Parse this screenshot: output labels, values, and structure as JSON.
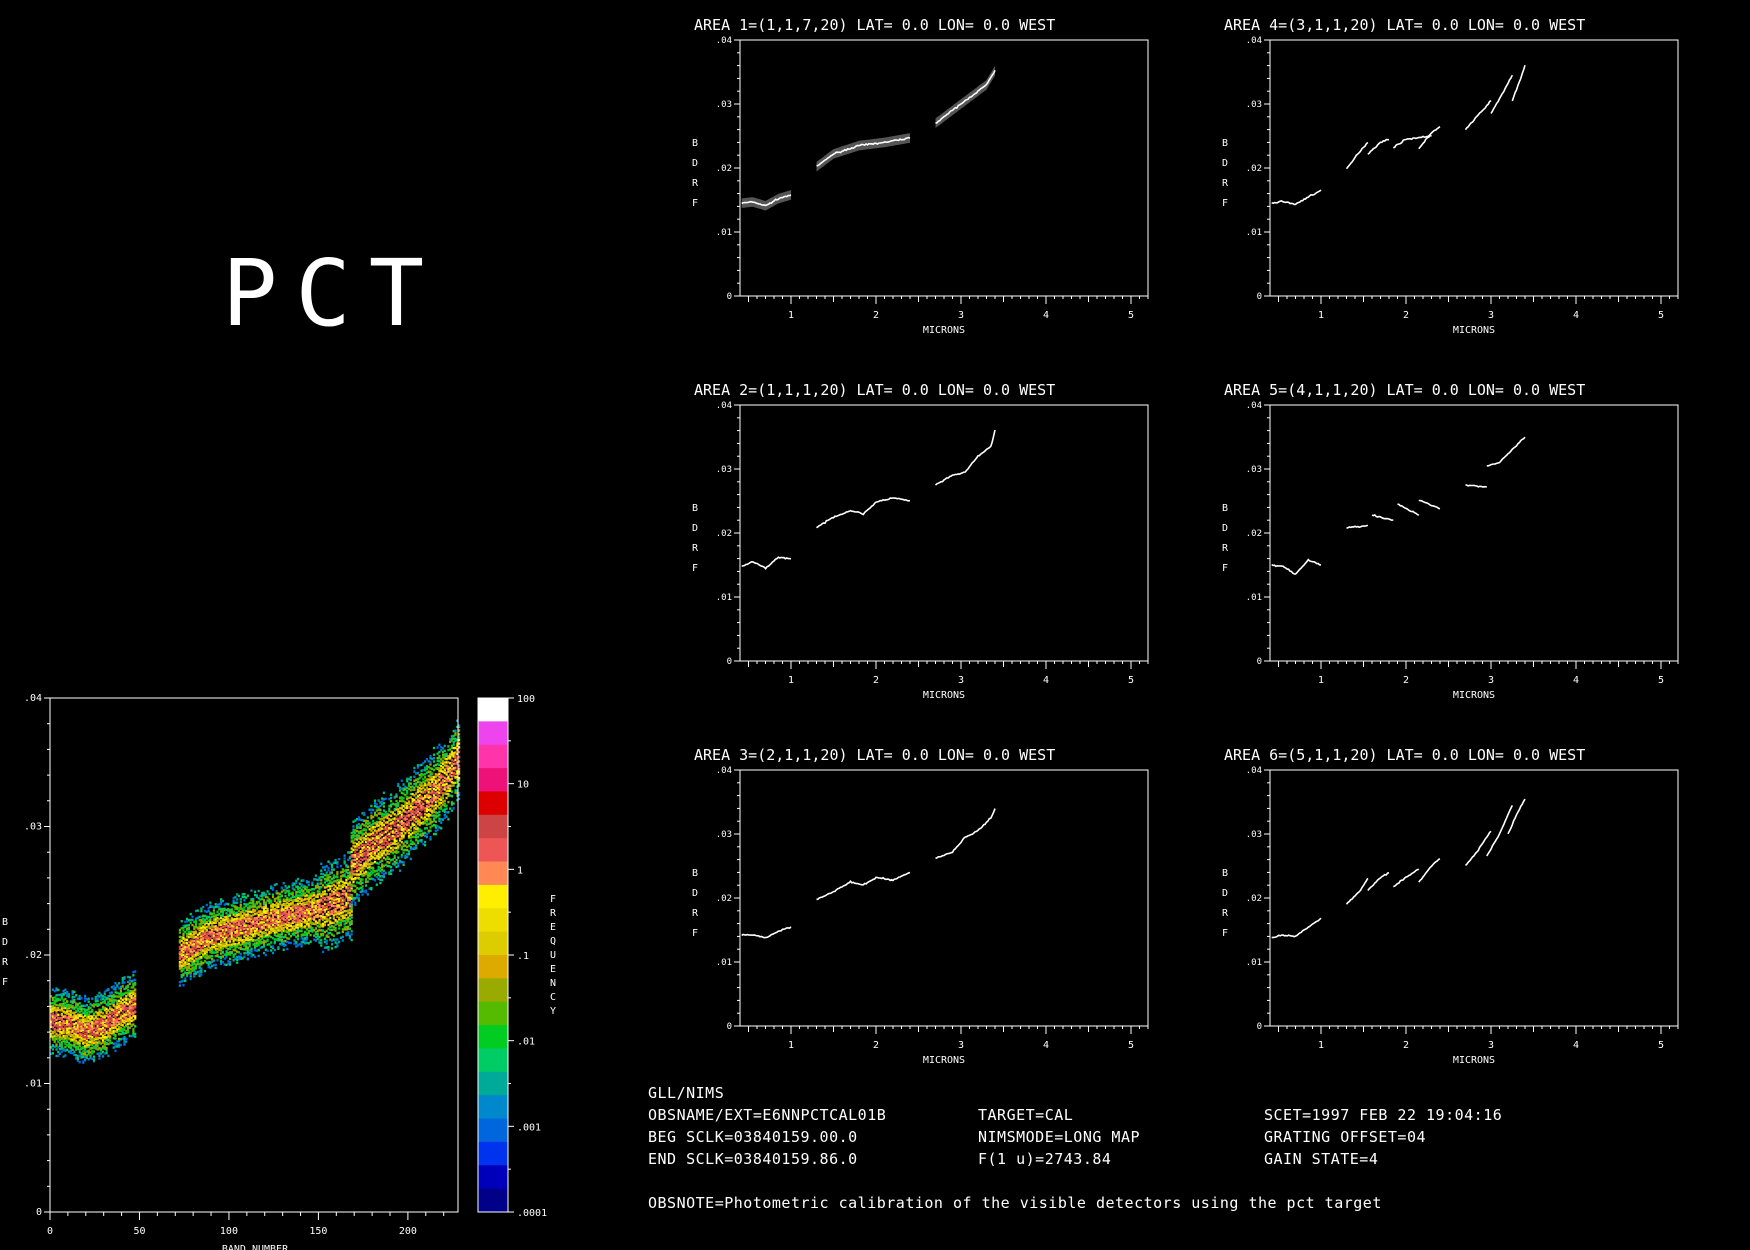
{
  "title": "PCT",
  "tick_labels_y": [
    ".01",
    ".02",
    ".03",
    ".04"
  ],
  "y_zero_label": "0",
  "heatmap": {
    "ylabel": "BDRF",
    "xlabel": "BAND NUMBER",
    "xticks": [
      "0",
      "50",
      "100",
      "150",
      "200"
    ],
    "colorbar_label": "FREQUENCY",
    "colorbar_ticks": [
      "100",
      "10",
      "1",
      ".1",
      ".01",
      ".001",
      ".0001"
    ],
    "colors": [
      "#ffffff",
      "#ee44ee",
      "#ff33aa",
      "#ee1177",
      "#dd0000",
      "#cc4444",
      "#ee5555",
      "#ff8855",
      "#ffee00",
      "#eedd00",
      "#ddcc00",
      "#ddaa00",
      "#99aa00",
      "#55bb00",
      "#00cc22",
      "#00cc66",
      "#00aa99",
      "#0088cc",
      "#0066dd",
      "#0033ee",
      "#0000bb",
      "#000088"
    ]
  },
  "chart_data": [
    {
      "type": "heatmap",
      "title": "PCT",
      "xlabel": "BAND NUMBER",
      "ylabel": "BDRF",
      "xlim": [
        0,
        228
      ],
      "ylim": [
        0,
        0.04
      ],
      "colorbar": {
        "label": "FREQUENCY",
        "scale": "log",
        "range": [
          0.0001,
          100
        ]
      },
      "segments": [
        {
          "x": [
            0,
            10,
            20,
            30,
            40,
            47
          ],
          "y": [
            0.0148,
            0.0146,
            0.014,
            0.0145,
            0.0155,
            0.016
          ]
        },
        {
          "x": [
            72,
            90,
            110,
            130,
            150,
            168
          ],
          "y": [
            0.02,
            0.0215,
            0.0222,
            0.023,
            0.0235,
            0.0245
          ]
        },
        {
          "x": [
            168,
            180,
            195,
            210,
            220,
            228
          ],
          "y": [
            0.027,
            0.0285,
            0.03,
            0.032,
            0.0335,
            0.0352
          ]
        }
      ]
    },
    {
      "type": "line",
      "title": "AREA 1=(1,1,7,20) LAT=   0.0 LON=   0.0 WEST",
      "xlabel": "MICRONS",
      "ylabel": "BDRF",
      "xlim": [
        0.4,
        5.2
      ],
      "ylim": [
        0,
        0.04
      ],
      "xticks": [
        1,
        2,
        3,
        4,
        5
      ],
      "band": true,
      "segments": [
        {
          "x": [
            0.42,
            0.55,
            0.7,
            0.85,
            1.0
          ],
          "y": [
            0.0145,
            0.0147,
            0.0141,
            0.0152,
            0.0158
          ]
        },
        {
          "x": [
            1.3,
            1.5,
            1.8,
            2.1,
            2.4
          ],
          "y": [
            0.0202,
            0.0222,
            0.0235,
            0.024,
            0.0247
          ]
        },
        {
          "x": [
            2.7,
            2.9,
            3.1,
            3.3,
            3.4
          ],
          "y": [
            0.027,
            0.029,
            0.031,
            0.033,
            0.0352
          ]
        }
      ]
    },
    {
      "type": "line",
      "title": "AREA 4=(3,1,1,20) LAT=   0.0 LON=   0.0 WEST",
      "xlabel": "MICRONS",
      "ylabel": "BDRF",
      "xlim": [
        0.4,
        5.2
      ],
      "ylim": [
        0,
        0.04
      ],
      "xticks": [
        1,
        2,
        3,
        4,
        5
      ],
      "band": false,
      "segments": [
        {
          "x": [
            0.42,
            0.55,
            0.7,
            0.85,
            1.0
          ],
          "y": [
            0.0145,
            0.0148,
            0.0143,
            0.0155,
            0.0165
          ]
        },
        {
          "x": [
            1.3,
            1.45,
            1.55
          ],
          "y": [
            0.0198,
            0.0225,
            0.024
          ]
        },
        {
          "x": [
            1.55,
            1.7,
            1.8
          ],
          "y": [
            0.0222,
            0.024,
            0.0245
          ]
        },
        {
          "x": [
            1.85,
            2.0,
            2.3
          ],
          "y": [
            0.0232,
            0.0245,
            0.025
          ]
        },
        {
          "x": [
            2.15,
            2.3,
            2.4
          ],
          "y": [
            0.023,
            0.0255,
            0.0265
          ]
        },
        {
          "x": [
            2.7,
            2.9,
            3.0
          ],
          "y": [
            0.026,
            0.029,
            0.0305
          ]
        },
        {
          "x": [
            3.0,
            3.15,
            3.25
          ],
          "y": [
            0.0285,
            0.032,
            0.0345
          ]
        },
        {
          "x": [
            3.25,
            3.35,
            3.4
          ],
          "y": [
            0.0305,
            0.034,
            0.036
          ]
        }
      ]
    },
    {
      "type": "line",
      "title": "AREA 2=(1,1,1,20) LAT=   0.0 LON=   0.0 WEST",
      "xlabel": "MICRONS",
      "ylabel": "BDRF",
      "xlim": [
        0.4,
        5.2
      ],
      "ylim": [
        0,
        0.04
      ],
      "xticks": [
        1,
        2,
        3,
        4,
        5
      ],
      "band": false,
      "segments": [
        {
          "x": [
            0.42,
            0.55,
            0.7,
            0.85,
            1.0
          ],
          "y": [
            0.0148,
            0.0155,
            0.0145,
            0.0162,
            0.016
          ]
        },
        {
          "x": [
            1.3,
            1.5,
            1.7,
            1.85,
            2.0,
            2.2,
            2.4
          ],
          "y": [
            0.0208,
            0.0225,
            0.0235,
            0.023,
            0.0248,
            0.0255,
            0.025
          ]
        },
        {
          "x": [
            2.7,
            2.9,
            3.05,
            3.2,
            3.35,
            3.4
          ],
          "y": [
            0.0275,
            0.029,
            0.0295,
            0.032,
            0.0335,
            0.036
          ]
        }
      ]
    },
    {
      "type": "line",
      "title": "AREA 5=(4,1,1,20) LAT=   0.0 LON=   0.0 WEST",
      "xlabel": "MICRONS",
      "ylabel": "BDRF",
      "xlim": [
        0.4,
        5.2
      ],
      "ylim": [
        0,
        0.04
      ],
      "xticks": [
        1,
        2,
        3,
        4,
        5
      ],
      "band": false,
      "segments": [
        {
          "x": [
            0.42,
            0.55,
            0.7,
            0.85,
            1.0
          ],
          "y": [
            0.015,
            0.0148,
            0.0135,
            0.0158,
            0.015
          ]
        },
        {
          "x": [
            1.3,
            1.55
          ],
          "y": [
            0.0208,
            0.0212
          ]
        },
        {
          "x": [
            1.6,
            1.85
          ],
          "y": [
            0.0228,
            0.022
          ]
        },
        {
          "x": [
            1.9,
            2.15
          ],
          "y": [
            0.0245,
            0.0228
          ]
        },
        {
          "x": [
            2.15,
            2.4
          ],
          "y": [
            0.0252,
            0.0238
          ]
        },
        {
          "x": [
            2.7,
            2.95
          ],
          "y": [
            0.0275,
            0.0272
          ]
        },
        {
          "x": [
            2.95,
            3.1,
            3.25,
            3.4
          ],
          "y": [
            0.0305,
            0.031,
            0.033,
            0.035
          ]
        }
      ]
    },
    {
      "type": "line",
      "title": "AREA 3=(2,1,1,20) LAT=   0.0 LON=   0.0 WEST",
      "xlabel": "MICRONS",
      "ylabel": "BDRF",
      "xlim": [
        0.4,
        5.2
      ],
      "ylim": [
        0,
        0.04
      ],
      "xticks": [
        1,
        2,
        3,
        4,
        5
      ],
      "band": false,
      "segments": [
        {
          "x": [
            0.42,
            0.55,
            0.7,
            0.85,
            1.0
          ],
          "y": [
            0.0142,
            0.0142,
            0.0138,
            0.0148,
            0.0155
          ]
        },
        {
          "x": [
            1.3,
            1.5,
            1.7,
            1.85,
            2.0,
            2.2,
            2.4
          ],
          "y": [
            0.0198,
            0.021,
            0.0225,
            0.022,
            0.0232,
            0.0228,
            0.024
          ]
        },
        {
          "x": [
            2.7,
            2.9,
            3.05,
            3.2,
            3.35,
            3.4
          ],
          "y": [
            0.0262,
            0.0272,
            0.0295,
            0.0305,
            0.0325,
            0.034
          ]
        }
      ]
    },
    {
      "type": "line",
      "title": "AREA 6=(5,1,1,20) LAT=   0.0 LON=   0.0 WEST",
      "xlabel": "MICRONS",
      "ylabel": "BDRF",
      "xlim": [
        0.4,
        5.2
      ],
      "ylim": [
        0,
        0.04
      ],
      "xticks": [
        1,
        2,
        3,
        4,
        5
      ],
      "band": false,
      "segments": [
        {
          "x": [
            0.42,
            0.55,
            0.7,
            0.85,
            1.0
          ],
          "y": [
            0.0138,
            0.0142,
            0.014,
            0.0155,
            0.0168
          ]
        },
        {
          "x": [
            1.3,
            1.45,
            1.55
          ],
          "y": [
            0.019,
            0.021,
            0.023
          ]
        },
        {
          "x": [
            1.55,
            1.7,
            1.8
          ],
          "y": [
            0.0212,
            0.0232,
            0.024
          ]
        },
        {
          "x": [
            1.85,
            2.0,
            2.15
          ],
          "y": [
            0.0218,
            0.0232,
            0.0245
          ]
        },
        {
          "x": [
            2.15,
            2.3,
            2.4
          ],
          "y": [
            0.0225,
            0.025,
            0.0262
          ]
        },
        {
          "x": [
            2.7,
            2.85,
            3.0
          ],
          "y": [
            0.025,
            0.0275,
            0.0305
          ]
        },
        {
          "x": [
            2.95,
            3.1,
            3.25
          ],
          "y": [
            0.0265,
            0.03,
            0.0345
          ]
        },
        {
          "x": [
            3.2,
            3.3,
            3.4
          ],
          "y": [
            0.03,
            0.033,
            0.0355
          ]
        }
      ]
    }
  ],
  "info": {
    "line1": "GLL/NIMS",
    "obsname": "OBSNAME/EXT=E6NNPCTCAL01B",
    "beg_sclk": "BEG SCLK=03840159.00.0",
    "end_sclk": "END SCLK=03840159.86.0",
    "target": "TARGET=CAL",
    "nimsmode": "NIMSMODE=LONG MAP",
    "f1u": "F(1 u)=2743.84",
    "scet": "SCET=1997 FEB 22 19:04:16",
    "grating": "GRATING OFFSET=04",
    "gain": "GAIN STATE=4",
    "obsnote": "OBSNOTE=Photometric calibration of the visible detectors using the pct target"
  }
}
